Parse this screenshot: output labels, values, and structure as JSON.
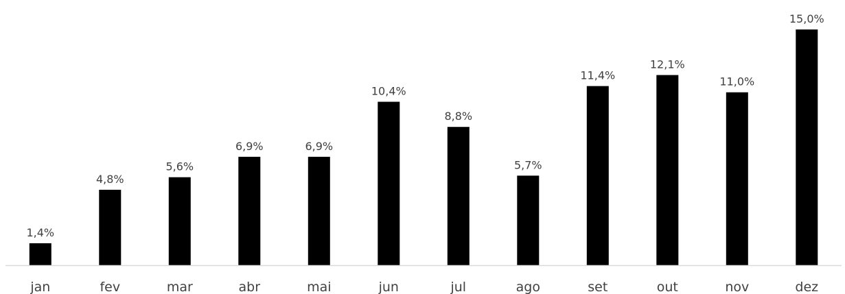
{
  "chart_data": {
    "type": "bar",
    "title": "",
    "xlabel": "",
    "ylabel": "",
    "categories": [
      "jan",
      "fev",
      "mar",
      "abr",
      "mai",
      "jun",
      "jul",
      "ago",
      "set",
      "out",
      "nov",
      "dez"
    ],
    "values": [
      1.4,
      4.8,
      5.6,
      6.9,
      6.9,
      10.4,
      8.8,
      5.7,
      11.4,
      12.1,
      11.0,
      15.0
    ],
    "data_labels": [
      "1,4%",
      "4,8%",
      "5,6%",
      "6,9%",
      "6,9%",
      "10,4%",
      "8,8%",
      "5,7%",
      "11,4%",
      "12,1%",
      "11,0%",
      "15,0%"
    ],
    "ylim": [
      0,
      15.0
    ],
    "grid": false,
    "legend": "none",
    "bar_color": "#000000",
    "axis_color": "#d9d9d9",
    "text_color": "#404040"
  }
}
